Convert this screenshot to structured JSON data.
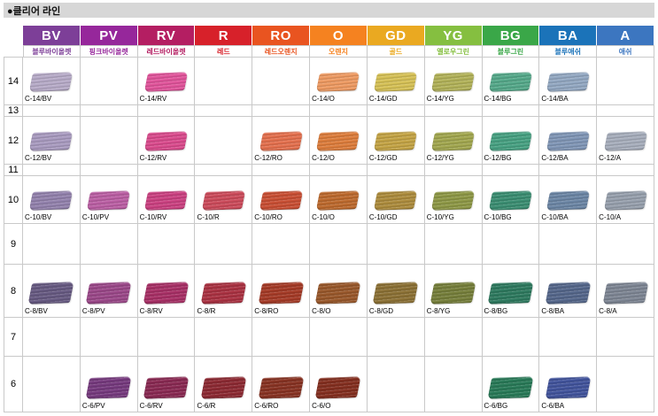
{
  "title": "●클리어 라인",
  "table": {
    "columns": [
      {
        "code": "BV",
        "name": "블루바이올렛",
        "color": "#7d3f98"
      },
      {
        "code": "PV",
        "name": "핑크바이올렛",
        "color": "#96279b"
      },
      {
        "code": "RV",
        "name": "레드바이올렛",
        "color": "#b41e62"
      },
      {
        "code": "R",
        "name": "레드",
        "color": "#d7212a"
      },
      {
        "code": "RO",
        "name": "레드오렌지",
        "color": "#e95420"
      },
      {
        "code": "O",
        "name": "오렌지",
        "color": "#f58220"
      },
      {
        "code": "GD",
        "name": "골드",
        "color": "#eaa921"
      },
      {
        "code": "YG",
        "name": "옐로우그린",
        "color": "#85bf40"
      },
      {
        "code": "BG",
        "name": "블루그린",
        "color": "#3aa748"
      },
      {
        "code": "BA",
        "name": "블루애쉬",
        "color": "#1b73b9"
      },
      {
        "code": "A",
        "name": "애쉬",
        "color": "#3c76c0"
      }
    ],
    "levels": [
      {
        "level": "14",
        "cells": [
          {
            "label": "C-14/BV",
            "color": "#b7abc8"
          },
          null,
          {
            "label": "C-14/RV",
            "color": "#e1549b"
          },
          null,
          null,
          {
            "label": "C-14/O",
            "color": "#ee9a62"
          },
          {
            "label": "C-14/GD",
            "color": "#d6c156"
          },
          {
            "label": "C-14/YG",
            "color": "#b2b259"
          },
          {
            "label": "C-14/BG",
            "color": "#55a98a"
          },
          {
            "label": "C-14/BA",
            "color": "#93a8c2"
          },
          null
        ]
      },
      {
        "level": "13",
        "cells": [
          null,
          null,
          null,
          null,
          null,
          null,
          null,
          null,
          null,
          null,
          null
        ]
      },
      {
        "level": "12",
        "cells": [
          {
            "label": "C-12/BV",
            "color": "#a99bc0"
          },
          null,
          {
            "label": "C-12/RV",
            "color": "#da4b8d"
          },
          null,
          {
            "label": "C-12/RO",
            "color": "#e4704e"
          },
          {
            "label": "C-12/O",
            "color": "#dd7d3c"
          },
          {
            "label": "C-12/GD",
            "color": "#c4a445"
          },
          {
            "label": "C-12/YG",
            "color": "#a2a74f"
          },
          {
            "label": "C-12/BG",
            "color": "#47a182"
          },
          {
            "label": "C-12/BA",
            "color": "#8096b6"
          },
          {
            "label": "C-12/A",
            "color": "#a7aebc"
          }
        ]
      },
      {
        "level": "11",
        "cells": [
          null,
          null,
          null,
          null,
          null,
          null,
          null,
          null,
          null,
          null,
          null
        ]
      },
      {
        "level": "10",
        "cells": [
          {
            "label": "C-10/BV",
            "color": "#9382ad"
          },
          {
            "label": "C-10/PV",
            "color": "#bb5fa4"
          },
          {
            "label": "C-10/RV",
            "color": "#cb4181"
          },
          {
            "label": "C-10/R",
            "color": "#cc4b5b"
          },
          {
            "label": "C-10/RO",
            "color": "#c94f34"
          },
          {
            "label": "C-10/O",
            "color": "#bd6a2e"
          },
          {
            "label": "C-10/GD",
            "color": "#ad8c3d"
          },
          {
            "label": "C-10/YG",
            "color": "#8e9846"
          },
          {
            "label": "C-10/BG",
            "color": "#3b8e72"
          },
          {
            "label": "C-10/BA",
            "color": "#6c86a5"
          },
          {
            "label": "C-10/A",
            "color": "#97a0ad"
          }
        ]
      },
      {
        "level": "9",
        "cells": [
          null,
          null,
          null,
          null,
          null,
          null,
          null,
          null,
          null,
          null,
          null
        ]
      },
      {
        "level": "8",
        "cells": [
          {
            "label": "C-8/BV",
            "color": "#675a82"
          },
          {
            "label": "C-8/PV",
            "color": "#9b4889"
          },
          {
            "label": "C-8/RV",
            "color": "#a83066"
          },
          {
            "label": "C-8/R",
            "color": "#aa3242"
          },
          {
            "label": "C-8/RO",
            "color": "#a53b27"
          },
          {
            "label": "C-8/O",
            "color": "#99582b"
          },
          {
            "label": "C-8/GD",
            "color": "#8c7135"
          },
          {
            "label": "C-8/YG",
            "color": "#767f3b"
          },
          {
            "label": "C-8/BG",
            "color": "#2e7a5f"
          },
          {
            "label": "C-8/BA",
            "color": "#55678b"
          },
          {
            "label": "C-8/A",
            "color": "#7e8694"
          }
        ]
      },
      {
        "level": "7",
        "cells": [
          null,
          null,
          null,
          null,
          null,
          null,
          null,
          null,
          null,
          null,
          null
        ]
      },
      {
        "level": "6",
        "cells": [
          null,
          {
            "label": "C-6/PV",
            "color": "#763a7e"
          },
          {
            "label": "C-6/RV",
            "color": "#8a2a53"
          },
          {
            "label": "C-6/R",
            "color": "#8d2a33"
          },
          {
            "label": "C-6/RO",
            "color": "#883323"
          },
          {
            "label": "C-6/O",
            "color": "#842f20"
          },
          null,
          null,
          {
            "label": "C-6/BG",
            "color": "#297a58"
          },
          {
            "label": "C-6/BA",
            "color": "#42549c"
          },
          null
        ]
      }
    ]
  }
}
